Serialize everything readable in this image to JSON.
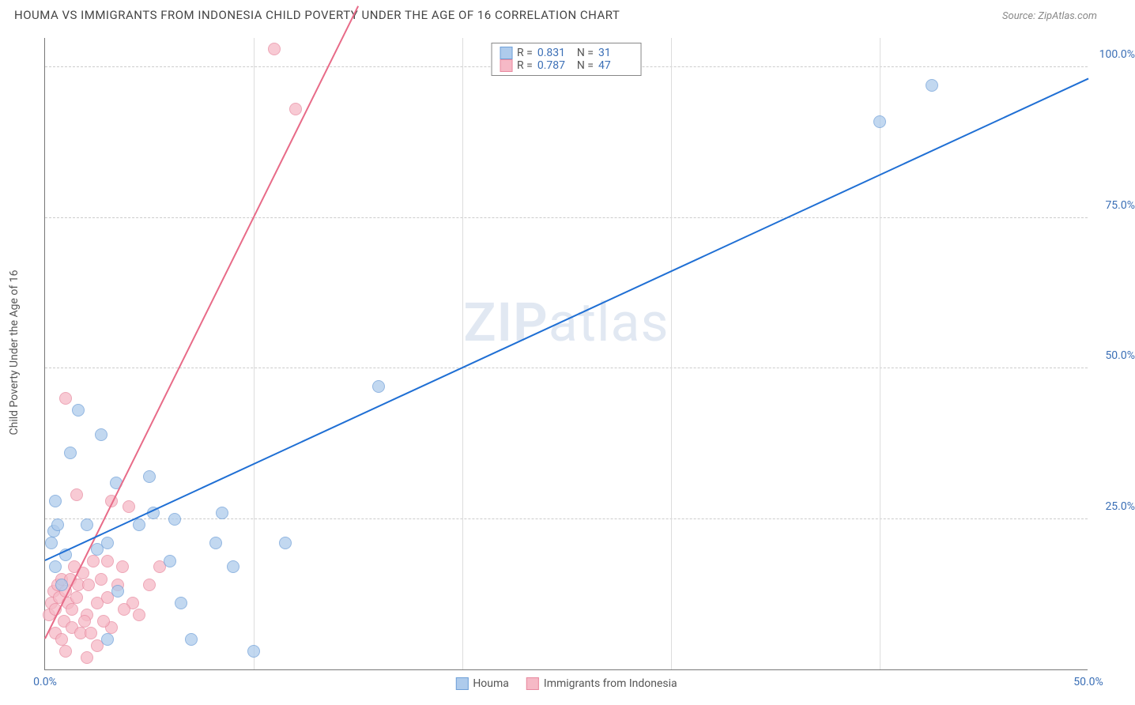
{
  "title": "HOUMA VS IMMIGRANTS FROM INDONESIA CHILD POVERTY UNDER THE AGE OF 16 CORRELATION CHART",
  "source": "Source: ZipAtlas.com",
  "ylabel": "Child Poverty Under the Age of 16",
  "watermark_a": "ZIP",
  "watermark_b": "atlas",
  "xlim": [
    0,
    50
  ],
  "ylim": [
    0,
    105
  ],
  "yticks": [
    {
      "v": 25,
      "label": "25.0%"
    },
    {
      "v": 50,
      "label": "50.0%"
    },
    {
      "v": 75,
      "label": "75.0%"
    },
    {
      "v": 100,
      "label": "100.0%"
    }
  ],
  "xticks": [
    {
      "v": 0,
      "label": "0.0%"
    },
    {
      "v": 50,
      "label": "50.0%"
    }
  ],
  "xgrid": [
    10,
    20,
    30,
    40
  ],
  "series": {
    "houma": {
      "label": "Houma",
      "fill": "#aecbec",
      "stroke": "#6fa0d8",
      "line_color": "#1f6fd4",
      "r": 0.831,
      "n": 31,
      "marker_r": 8,
      "trend": {
        "x1": 0,
        "y1": 18,
        "x2": 50,
        "y2": 98
      },
      "points": [
        [
          0.3,
          21
        ],
        [
          0.4,
          23
        ],
        [
          0.6,
          24
        ],
        [
          0.5,
          28
        ],
        [
          1.2,
          36
        ],
        [
          1.6,
          43
        ],
        [
          2.7,
          39
        ],
        [
          3.0,
          21
        ],
        [
          3.4,
          31
        ],
        [
          3.5,
          13
        ],
        [
          3.0,
          5
        ],
        [
          4.5,
          24
        ],
        [
          5.0,
          32
        ],
        [
          5.2,
          26
        ],
        [
          6.0,
          18
        ],
        [
          6.5,
          11
        ],
        [
          6.2,
          25
        ],
        [
          8.2,
          21
        ],
        [
          8.5,
          26
        ],
        [
          10.0,
          3
        ],
        [
          9.0,
          17
        ],
        [
          11.5,
          21
        ],
        [
          16.0,
          47
        ],
        [
          7.0,
          5
        ],
        [
          1.0,
          19
        ],
        [
          0.5,
          17
        ],
        [
          0.8,
          14
        ],
        [
          2.0,
          24
        ],
        [
          2.5,
          20
        ],
        [
          40.0,
          91
        ],
        [
          42.5,
          97
        ]
      ]
    },
    "indo": {
      "label": "Immigrants from Indonesia",
      "fill": "#f6b9c6",
      "stroke": "#e88aa0",
      "line_color": "#e86b88",
      "r": 0.787,
      "n": 47,
      "marker_r": 8,
      "trend": {
        "x1": 0,
        "y1": 5,
        "x2": 15,
        "y2": 110
      },
      "points": [
        [
          0.2,
          9
        ],
        [
          0.3,
          11
        ],
        [
          0.4,
          13
        ],
        [
          0.5,
          10
        ],
        [
          0.6,
          14
        ],
        [
          0.7,
          12
        ],
        [
          0.8,
          15
        ],
        [
          0.9,
          8
        ],
        [
          1.0,
          13
        ],
        [
          1.1,
          11
        ],
        [
          1.2,
          15
        ],
        [
          1.3,
          10
        ],
        [
          1.4,
          17
        ],
        [
          1.5,
          12
        ],
        [
          1.6,
          14
        ],
        [
          1.8,
          16
        ],
        [
          2.0,
          9
        ],
        [
          2.1,
          14
        ],
        [
          2.3,
          18
        ],
        [
          2.5,
          11
        ],
        [
          2.7,
          15
        ],
        [
          3.0,
          18
        ],
        [
          3.2,
          7
        ],
        [
          3.2,
          28
        ],
        [
          3.5,
          14
        ],
        [
          3.7,
          17
        ],
        [
          4.0,
          27
        ],
        [
          4.2,
          11
        ],
        [
          1.0,
          45
        ],
        [
          1.5,
          29
        ],
        [
          2.0,
          2
        ],
        [
          2.5,
          4
        ],
        [
          4.5,
          9
        ],
        [
          5.0,
          14
        ],
        [
          0.5,
          6
        ],
        [
          0.8,
          5
        ],
        [
          1.0,
          3
        ],
        [
          1.3,
          7
        ],
        [
          3.0,
          12
        ],
        [
          3.8,
          10
        ],
        [
          1.7,
          6
        ],
        [
          1.9,
          8
        ],
        [
          2.2,
          6
        ],
        [
          2.8,
          8
        ],
        [
          11.0,
          103
        ],
        [
          12.0,
          93
        ],
        [
          5.5,
          17
        ]
      ]
    }
  }
}
